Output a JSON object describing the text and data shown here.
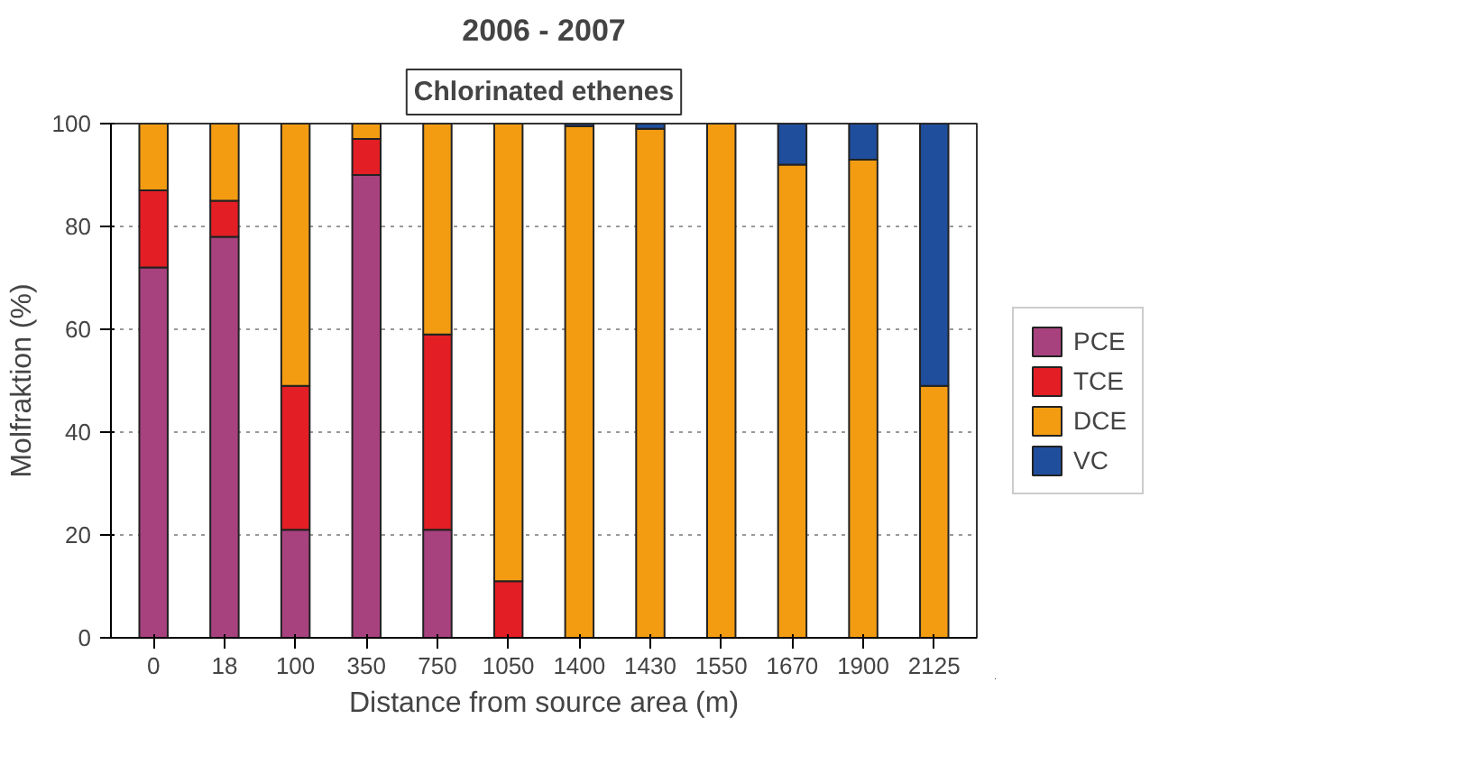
{
  "chart_data": {
    "type": "bar",
    "stacked": true,
    "title": "2006 - 2007",
    "subtitle": "Chlorinated ethenes",
    "xlabel": "Distance from source area (m)",
    "ylabel": "Molfraktion (%)",
    "categories": [
      "0",
      "18",
      "100",
      "350",
      "750",
      "1050",
      "1400",
      "1430",
      "1550",
      "1670",
      "1900",
      "2125"
    ],
    "series": [
      {
        "name": "PCE",
        "color": "#a8427f",
        "values": [
          72,
          78,
          21,
          90,
          21,
          0,
          0,
          0,
          0,
          0,
          0,
          0
        ]
      },
      {
        "name": "TCE",
        "color": "#e31e24",
        "values": [
          15,
          7,
          28,
          7,
          38,
          11,
          0,
          0,
          0,
          0,
          0,
          0
        ]
      },
      {
        "name": "DCE",
        "color": "#f39c12",
        "values": [
          13,
          15,
          51,
          3,
          41,
          89,
          99.5,
          99,
          100,
          92,
          93,
          49
        ]
      },
      {
        "name": "VC",
        "color": "#1f4e9c",
        "values": [
          0,
          0,
          0,
          0,
          0,
          0,
          0.5,
          1,
          0,
          8,
          7,
          51
        ]
      }
    ],
    "ylim": [
      0,
      100
    ],
    "yticks": [
      0,
      20,
      40,
      60,
      80,
      100
    ],
    "grid": "y",
    "legend": "right"
  }
}
